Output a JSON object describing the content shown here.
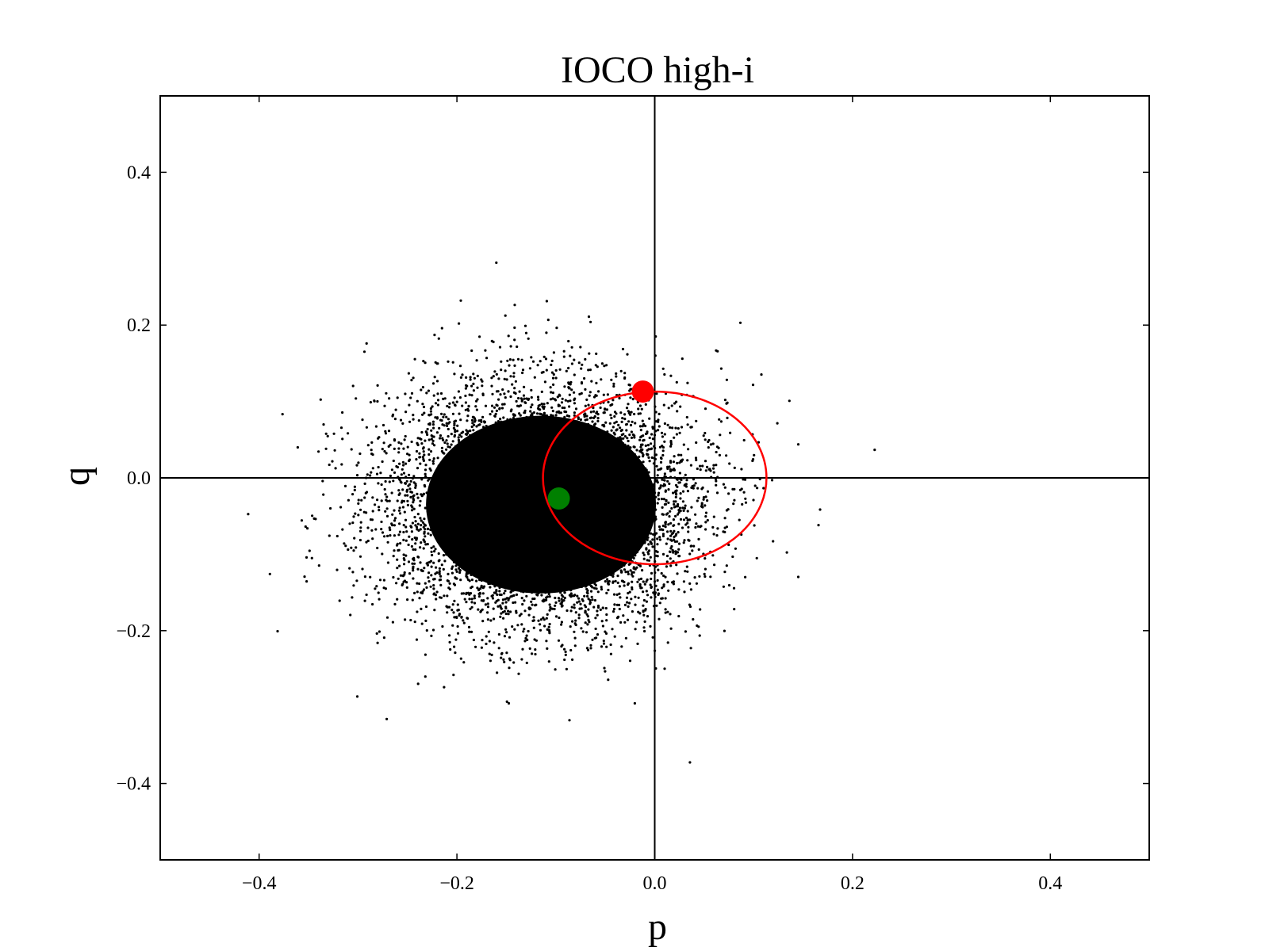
{
  "chart_data": {
    "type": "scatter",
    "title": "IOCO high-i",
    "xlabel": "p",
    "ylabel": "q",
    "xlim": [
      -0.5,
      0.5
    ],
    "ylim": [
      -0.5,
      0.5
    ],
    "xticks": [
      -0.4,
      -0.2,
      0.0,
      0.2,
      0.4
    ],
    "yticks": [
      -0.4,
      -0.2,
      0.0,
      0.2,
      0.4
    ],
    "xtick_labels": [
      "−0.4",
      "−0.2",
      "0.0",
      "0.2",
      "0.4"
    ],
    "ytick_labels": [
      "−0.4",
      "−0.2",
      "0.0",
      "0.2",
      "0.4"
    ],
    "grid": false,
    "reference_lines": {
      "x": 0.0,
      "y": 0.0,
      "color": "#000000"
    },
    "scatter_cloud": {
      "color": "#000000",
      "center": [
        -0.115,
        -0.035
      ],
      "spread": [
        0.075,
        0.075
      ],
      "count": 14000
    },
    "ellipse": {
      "color": "#ff0000",
      "center": [
        0.0,
        0.0
      ],
      "radius_p": 0.113,
      "radius_q": 0.113
    },
    "markers": [
      {
        "x": -0.012,
        "y": 0.113,
        "color": "#ff0000"
      },
      {
        "x": -0.097,
        "y": -0.027,
        "color": "#008000"
      }
    ]
  }
}
